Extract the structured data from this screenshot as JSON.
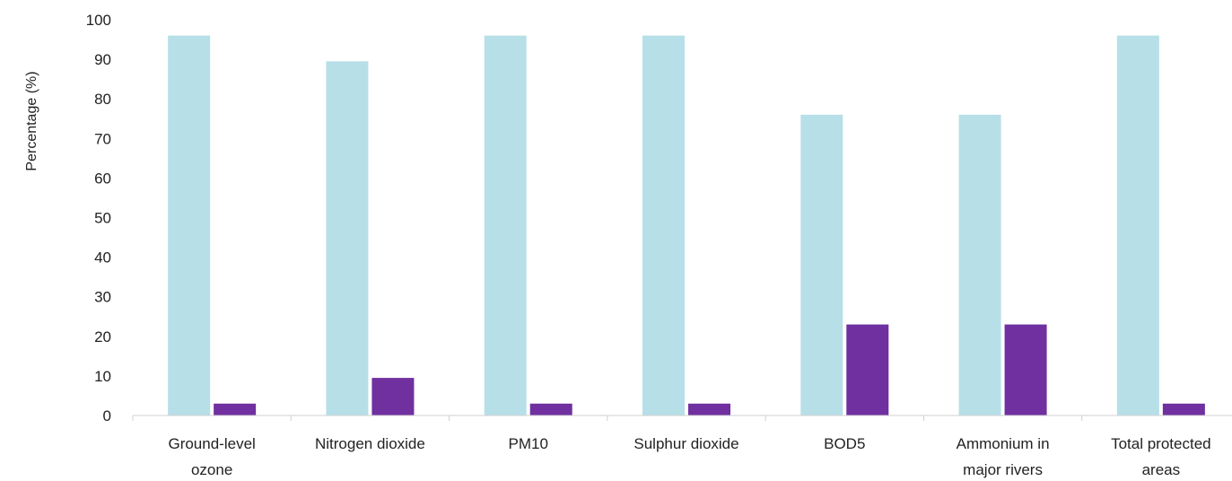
{
  "chart_data": {
    "type": "bar",
    "title": "",
    "xlabel": "",
    "ylabel": "Percentage (%)",
    "ylim": [
      0,
      100
    ],
    "yticks": [
      0,
      10,
      20,
      30,
      40,
      50,
      60,
      70,
      80,
      90,
      100
    ],
    "grid": false,
    "legend": "none",
    "categories": [
      [
        "Ground-level",
        "ozone"
      ],
      [
        "Nitrogen dioxide"
      ],
      [
        "PM10"
      ],
      [
        "Sulphur dioxide"
      ],
      [
        "BOD5"
      ],
      [
        "Ammonium in",
        "major rivers"
      ],
      [
        "Total protected",
        "areas"
      ]
    ],
    "series": [
      {
        "color": "#b7dfe8",
        "values": [
          96,
          89.5,
          96,
          96,
          76,
          76,
          96
        ]
      },
      {
        "color": "#7030a0",
        "values": [
          3,
          9.5,
          3,
          3,
          23,
          23,
          3
        ]
      }
    ]
  }
}
